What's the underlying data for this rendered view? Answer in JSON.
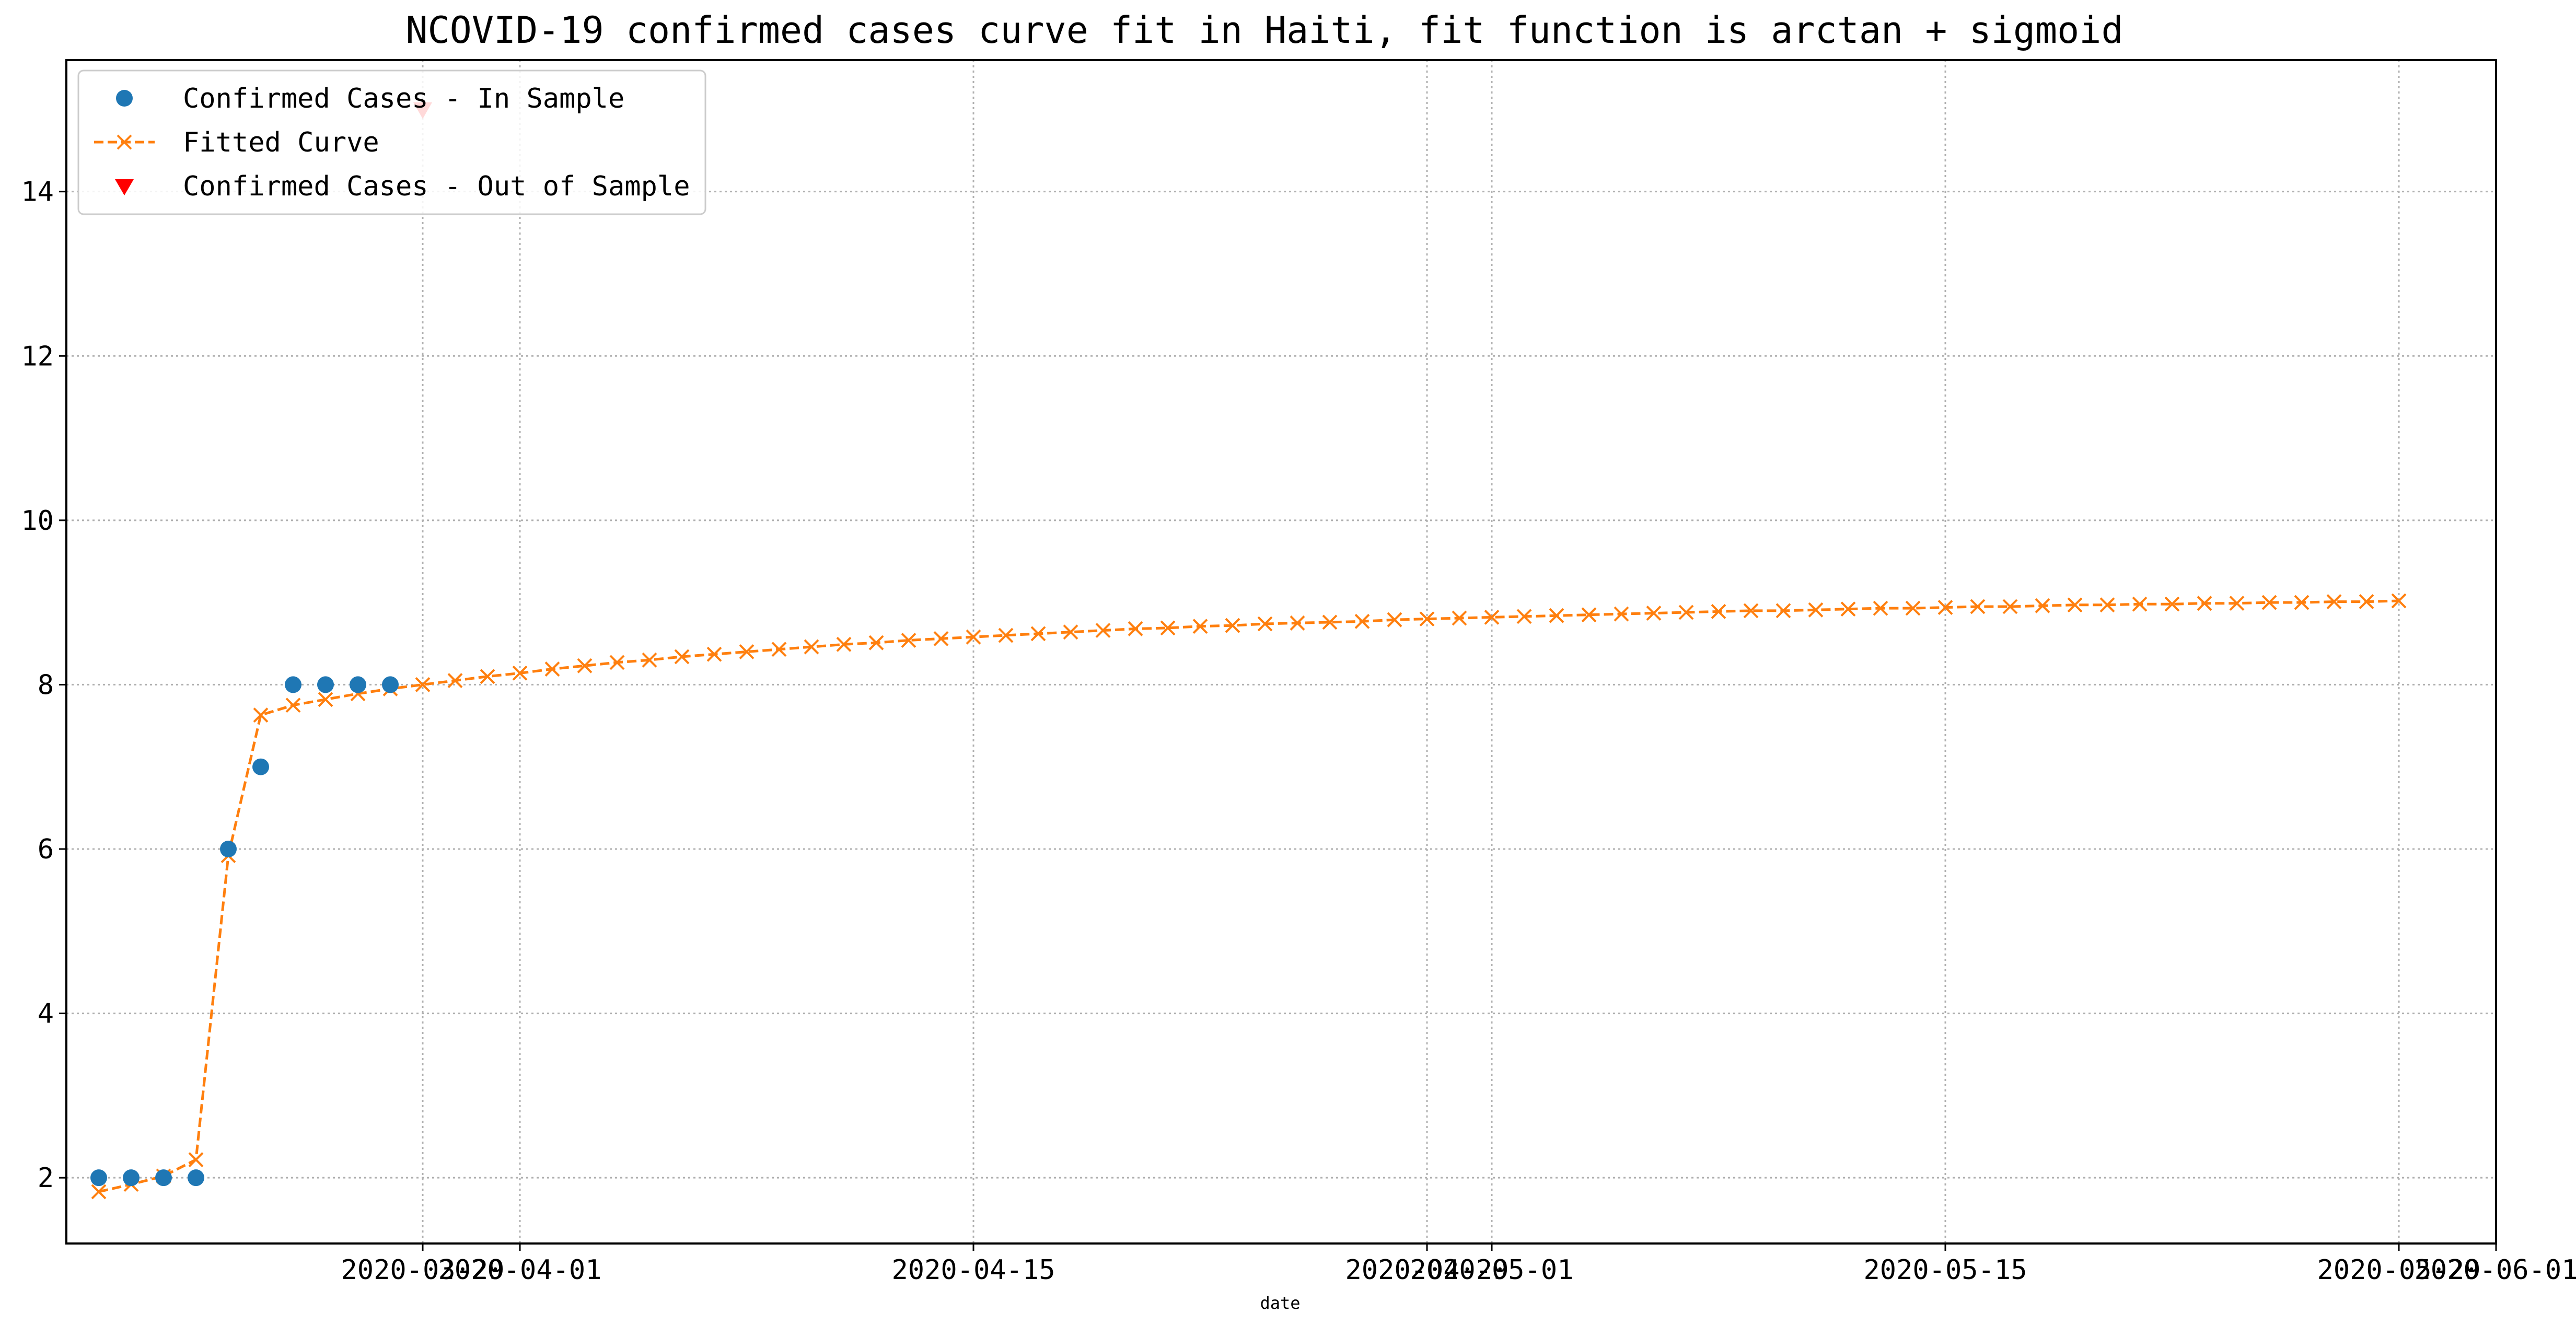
{
  "chart_data": {
    "type": "line",
    "title": "NCOVID-19 confirmed cases curve fit in Haiti, fit function is arctan + sigmoid",
    "xlabel": "date",
    "ylabel": "",
    "x_axis_type": "date",
    "xlim": [
      "2020-03-18",
      "2020-06-01"
    ],
    "ylim": [
      1.2,
      15.6
    ],
    "x_ticks": [
      "2020-03-29",
      "2020-04-01",
      "2020-04-15",
      "2020-04-29",
      "2020-05-01",
      "2020-05-15",
      "2020-05-29",
      "2020-06-01"
    ],
    "y_ticks": [
      2,
      4,
      6,
      8,
      10,
      12,
      14
    ],
    "grid": true,
    "legend_position": "upper-left",
    "series": [
      {
        "name": "Confirmed Cases - In Sample",
        "marker": "circle",
        "color": "#1f77b4",
        "x": [
          "2020-03-19",
          "2020-03-20",
          "2020-03-21",
          "2020-03-22",
          "2020-03-23",
          "2020-03-24",
          "2020-03-25",
          "2020-03-26",
          "2020-03-27",
          "2020-03-28"
        ],
        "y": [
          2,
          2,
          2,
          2,
          6,
          7,
          8,
          8,
          8,
          8
        ]
      },
      {
        "name": "Fitted Curve",
        "marker": "x",
        "line": "dashed",
        "color": "#ff7f0e",
        "x": [
          "2020-03-19",
          "2020-03-20",
          "2020-03-21",
          "2020-03-22",
          "2020-03-23",
          "2020-03-24",
          "2020-03-25",
          "2020-03-26",
          "2020-03-27",
          "2020-03-28",
          "2020-03-29",
          "2020-03-30",
          "2020-03-31",
          "2020-04-01",
          "2020-04-02",
          "2020-04-03",
          "2020-04-04",
          "2020-04-05",
          "2020-04-06",
          "2020-04-07",
          "2020-04-08",
          "2020-04-09",
          "2020-04-10",
          "2020-04-11",
          "2020-04-12",
          "2020-04-13",
          "2020-04-14",
          "2020-04-15",
          "2020-04-16",
          "2020-04-17",
          "2020-04-18",
          "2020-04-19",
          "2020-04-20",
          "2020-04-21",
          "2020-04-22",
          "2020-04-23",
          "2020-04-24",
          "2020-04-25",
          "2020-04-26",
          "2020-04-27",
          "2020-04-28",
          "2020-04-29",
          "2020-04-30",
          "2020-05-01",
          "2020-05-02",
          "2020-05-03",
          "2020-05-04",
          "2020-05-05",
          "2020-05-06",
          "2020-05-07",
          "2020-05-08",
          "2020-05-09",
          "2020-05-10",
          "2020-05-11",
          "2020-05-12",
          "2020-05-13",
          "2020-05-14",
          "2020-05-15",
          "2020-05-16",
          "2020-05-17",
          "2020-05-18",
          "2020-05-19",
          "2020-05-20",
          "2020-05-21",
          "2020-05-22",
          "2020-05-23",
          "2020-05-24",
          "2020-05-25",
          "2020-05-26",
          "2020-05-27",
          "2020-05-28",
          "2020-05-29"
        ],
        "y": [
          1.83,
          1.92,
          2.02,
          2.22,
          5.92,
          7.63,
          7.75,
          7.82,
          7.89,
          7.95,
          8.0,
          8.05,
          8.1,
          8.14,
          8.19,
          8.23,
          8.27,
          8.3,
          8.34,
          8.37,
          8.4,
          8.43,
          8.46,
          8.49,
          8.51,
          8.54,
          8.56,
          8.58,
          8.6,
          8.62,
          8.64,
          8.66,
          8.68,
          8.69,
          8.71,
          8.72,
          8.74,
          8.75,
          8.76,
          8.77,
          8.79,
          8.8,
          8.81,
          8.82,
          8.83,
          8.84,
          8.85,
          8.86,
          8.87,
          8.88,
          8.89,
          8.9,
          8.9,
          8.91,
          8.92,
          8.93,
          8.93,
          8.94,
          8.95,
          8.95,
          8.96,
          8.97,
          8.97,
          8.98,
          8.98,
          8.99,
          8.99,
          9.0,
          9.0,
          9.01,
          9.01,
          9.02
        ]
      },
      {
        "name": "Confirmed Cases - Out of Sample",
        "marker": "triangle-down",
        "color": "#ff0000",
        "x": [
          "2020-03-29"
        ],
        "y": [
          15
        ]
      }
    ]
  }
}
